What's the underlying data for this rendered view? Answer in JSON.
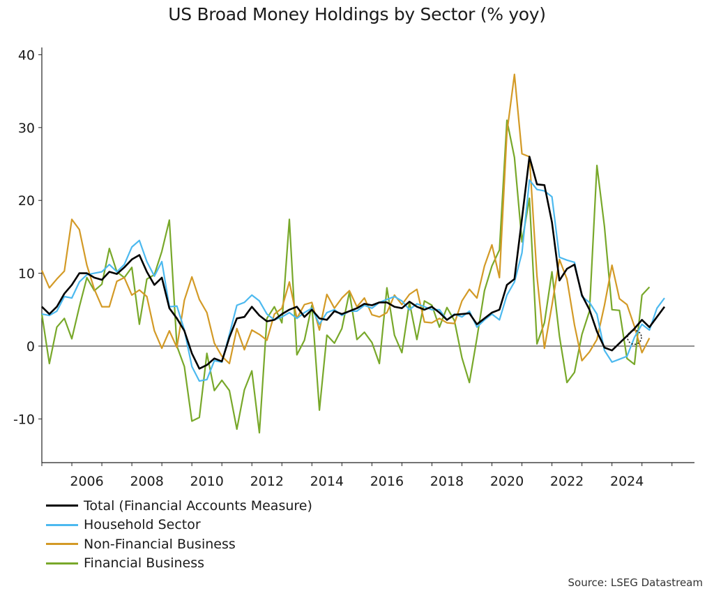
{
  "chart_data": {
    "type": "line",
    "title": "US Broad Money Holdings by Sector (% yoy)",
    "ylim": [
      -16,
      41
    ],
    "xlim": [
      2005,
      2026.75
    ],
    "yticks": [
      -10,
      0,
      10,
      20,
      30,
      40
    ],
    "xticks": [
      2006,
      2008,
      2010,
      2012,
      2014,
      2016,
      2018,
      2020,
      2022,
      2024
    ],
    "ytick_labels": [
      "-10",
      "0",
      "10",
      "20",
      "30",
      "40"
    ],
    "xtick_labels": [
      "2006",
      "2008",
      "2010",
      "2012",
      "2014",
      "2016",
      "2018",
      "2020",
      "2022",
      "2024"
    ],
    "x_start": 2005,
    "x_step": 0.25,
    "zero_line": true,
    "grid": false,
    "legend_position": "bottom-left",
    "annotation": "dotted circle marking latest Non-Financial Business reading",
    "annotation_point": [
      2024.75,
      1.2
    ],
    "series": [
      {
        "name": "Total (Financial Accounts Measure)",
        "color": "#000000",
        "values": [
          5.4,
          4.4,
          5.4,
          7.2,
          8.4,
          10.0,
          10.0,
          9.4,
          9.1,
          10.2,
          9.9,
          10.8,
          11.9,
          12.5,
          10.2,
          8.4,
          9.4,
          5.2,
          3.8,
          2.1,
          -1.0,
          -3.1,
          -2.6,
          -1.7,
          -2.1,
          1.2,
          3.8,
          4.0,
          5.4,
          4.2,
          3.4,
          3.6,
          4.4,
          5.0,
          5.4,
          4.0,
          5.0,
          3.8,
          3.6,
          4.8,
          4.4,
          4.8,
          5.2,
          5.8,
          5.6,
          6.0,
          6.0,
          5.4,
          5.2,
          6.1,
          5.4,
          5.0,
          5.4,
          4.6,
          3.6,
          4.3,
          4.4,
          4.5,
          3.0,
          3.8,
          4.6,
          5.0,
          8.4,
          9.2,
          17.5,
          26.0,
          22.2,
          22.1,
          17.0,
          9.0,
          10.6,
          11.2,
          7.0,
          5.0,
          2.0,
          -0.2,
          -0.6,
          0.4,
          1.4,
          2.4,
          3.6,
          2.6,
          4.0,
          5.4
        ]
      },
      {
        "name": "Household Sector",
        "color": "#4cb9ef",
        "values": [
          4.4,
          4.2,
          4.8,
          6.8,
          6.6,
          8.8,
          9.8,
          10.0,
          10.2,
          11.2,
          10.2,
          11.2,
          13.6,
          14.5,
          11.6,
          9.6,
          11.6,
          5.4,
          5.5,
          2.2,
          -2.8,
          -4.8,
          -4.6,
          -2.0,
          -2.2,
          1.6,
          5.6,
          6.0,
          7.0,
          6.2,
          4.4,
          3.6,
          4.0,
          4.6,
          3.8,
          4.6,
          5.2,
          3.0,
          4.6,
          5.0,
          4.2,
          4.8,
          4.8,
          5.6,
          5.2,
          6.0,
          6.4,
          6.8,
          6.2,
          5.0,
          5.8,
          5.4,
          5.0,
          5.0,
          3.6,
          4.4,
          4.0,
          4.8,
          2.6,
          3.6,
          4.4,
          3.6,
          7.0,
          8.8,
          12.8,
          22.8,
          21.5,
          21.3,
          20.5,
          12.2,
          11.8,
          11.5,
          6.8,
          6.0,
          4.4,
          -0.6,
          -2.2,
          -1.8,
          -1.4,
          1.2,
          3.0,
          2.2,
          5.2,
          6.6
        ]
      },
      {
        "name": "Non-Financial Business",
        "color": "#d39a26",
        "values": [
          10.4,
          8.0,
          9.2,
          10.3,
          17.4,
          16.0,
          11.1,
          7.8,
          5.4,
          5.4,
          8.9,
          9.4,
          7.0,
          7.7,
          6.8,
          2.1,
          -0.3,
          2.1,
          -0.2,
          6.3,
          9.5,
          6.4,
          4.6,
          0.4,
          -1.4,
          -2.4,
          2.4,
          -0.5,
          2.2,
          1.6,
          0.8,
          4.4,
          5.2,
          8.8,
          3.8,
          5.7,
          6.0,
          2.2,
          7.1,
          5.2,
          6.6,
          7.6,
          5.4,
          6.6,
          4.3,
          4.0,
          4.6,
          7.0,
          5.7,
          7.1,
          7.8,
          3.3,
          3.2,
          3.8,
          3.2,
          3.1,
          6.2,
          7.8,
          6.6,
          11.0,
          13.9,
          9.4,
          29.3,
          37.3,
          26.4,
          26.0,
          9.6,
          -0.3,
          5.6,
          11.9,
          9.2,
          2.9,
          -2.0,
          -0.8,
          0.9,
          5.6,
          11.1,
          6.5,
          5.7,
          2.7,
          -0.9,
          1.1
        ]
      },
      {
        "name": "Financial Business",
        "color": "#78a82a",
        "values": [
          4.4,
          -2.4,
          2.6,
          3.8,
          1.0,
          5.4,
          9.4,
          7.6,
          8.5,
          13.4,
          10.2,
          9.4,
          10.8,
          3.0,
          9.2,
          9.8,
          13.0,
          17.3,
          0.0,
          -2.8,
          -10.3,
          -9.8,
          -1.0,
          -6.1,
          -4.7,
          -6.1,
          -11.4,
          -6.0,
          -3.4,
          -11.9,
          3.8,
          5.4,
          3.2,
          17.4,
          -1.2,
          0.8,
          5.6,
          -8.8,
          1.5,
          0.4,
          2.4,
          7.4,
          0.9,
          1.9,
          0.5,
          -2.4,
          8.0,
          1.5,
          -0.9,
          6.0,
          0.9,
          6.2,
          5.6,
          2.6,
          5.3,
          3.5,
          -1.6,
          -5.0,
          1.1,
          7.6,
          11.0,
          13.2,
          31.0,
          25.9,
          14.3,
          20.3,
          0.3,
          3.2,
          10.2,
          1.4,
          -5.0,
          -3.6,
          1.6,
          4.8,
          24.8,
          16.4,
          5.0,
          4.9,
          -1.7,
          -2.5,
          7.0,
          8.1
        ]
      }
    ]
  },
  "source_note": "Source: LSEG Datastream"
}
